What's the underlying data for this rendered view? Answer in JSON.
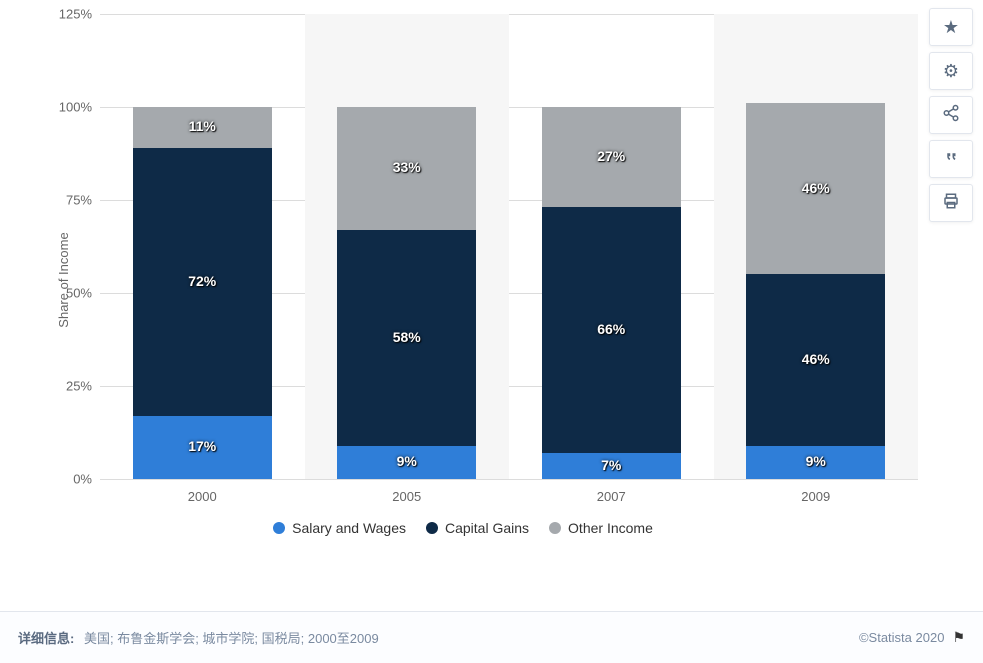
{
  "chart": {
    "type": "stacked-bar",
    "y_axis": {
      "title": "Share of Income",
      "min": 0,
      "max": 125,
      "tick_step": 25,
      "ticks": [
        0,
        25,
        50,
        75,
        100,
        125
      ],
      "tick_suffix": "%"
    },
    "categories": [
      "2000",
      "2005",
      "2007",
      "2009"
    ],
    "series": [
      {
        "name": "Salary and Wages",
        "color": "#2f7ed8",
        "values": [
          17,
          9,
          7,
          9
        ]
      },
      {
        "name": "Capital Gains",
        "color": "#0e2a47",
        "values": [
          72,
          58,
          66,
          46
        ]
      },
      {
        "name": "Other Income",
        "color": "#a5a9ad",
        "values": [
          11,
          33,
          27,
          46
        ]
      }
    ],
    "value_suffix": "%",
    "alt_band_color": "#f6f6f6",
    "grid_color": "#dcdcdc",
    "bar_width_ratio": 0.68,
    "label_fontsize": 14,
    "tick_fontsize": 13
  },
  "toolbar": {
    "items": [
      {
        "name": "favorite",
        "glyph": "★"
      },
      {
        "name": "settings",
        "glyph": "⚙"
      },
      {
        "name": "share",
        "glyph": "≪"
      },
      {
        "name": "cite",
        "glyph": "❝"
      },
      {
        "name": "print",
        "glyph": "⎙"
      }
    ]
  },
  "footer": {
    "label": "详细信息:",
    "text": "美国; 布鲁金斯学会; 城市学院; 国税局; 2000至2009",
    "copyright": "©Statista 2020"
  }
}
